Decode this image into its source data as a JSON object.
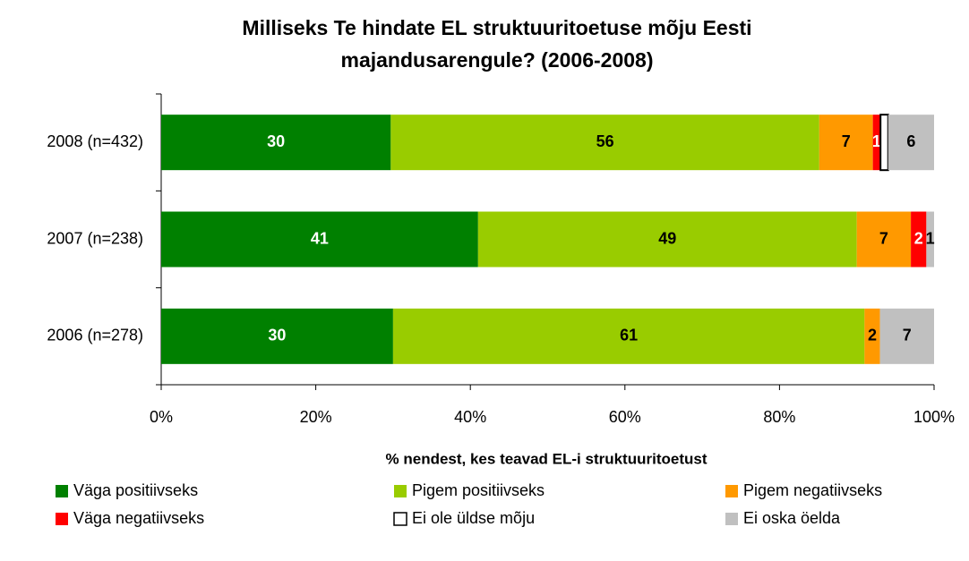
{
  "chart_data": {
    "type": "stacked_barh",
    "stacking": "percent",
    "title": [
      "Milliseks Te hindate EL struktuuritoetuse mõju Eesti",
      "majandusarengule? (2006-2008)"
    ],
    "x_label": "% nendest, kes teavad EL-i struktuuritoetust",
    "categories": [
      "2008 (n=432)",
      "2007 (n=238)",
      "2006 (n=278)"
    ],
    "series": [
      {
        "name": "Väga positiivseks",
        "color": "#008000",
        "label_color": "#ffffff",
        "values": [
          30,
          41,
          30
        ]
      },
      {
        "name": "Pigem positiivseks",
        "color": "#99cc00",
        "label_color": "#000000",
        "values": [
          56,
          49,
          61
        ]
      },
      {
        "name": "Pigem negatiivseks",
        "color": "#ff9900",
        "label_color": "#000000",
        "values": [
          7,
          7,
          2
        ]
      },
      {
        "name": "Väga negatiivseks",
        "color": "#ff0000",
        "label_color": "#ffffff",
        "values": [
          1,
          2,
          null
        ]
      },
      {
        "name": "Ei ole üldse mõju",
        "color": "#ffffff",
        "label_color": "#000000",
        "values": [
          1,
          null,
          null
        ]
      },
      {
        "name": "Ei oska öelda",
        "color": "#c0c0c0",
        "label_color": "#000000",
        "values": [
          6,
          1,
          7
        ]
      }
    ],
    "value_labels_shown": [
      [
        true,
        true,
        true
      ],
      [
        true,
        true,
        true
      ],
      [
        true,
        true,
        true
      ],
      [
        true,
        true,
        false
      ],
      [
        false,
        false,
        false
      ],
      [
        true,
        true,
        true
      ]
    ],
    "xlim": [
      0,
      100
    ],
    "xticks": [
      {
        "value": 0,
        "label": "0%"
      },
      {
        "value": 20,
        "label": "20%"
      },
      {
        "value": 40,
        "label": "40%"
      },
      {
        "value": 60,
        "label": "60%"
      },
      {
        "value": 80,
        "label": "80%"
      },
      {
        "value": 100,
        "label": "100%"
      }
    ],
    "legend": "bottom"
  }
}
